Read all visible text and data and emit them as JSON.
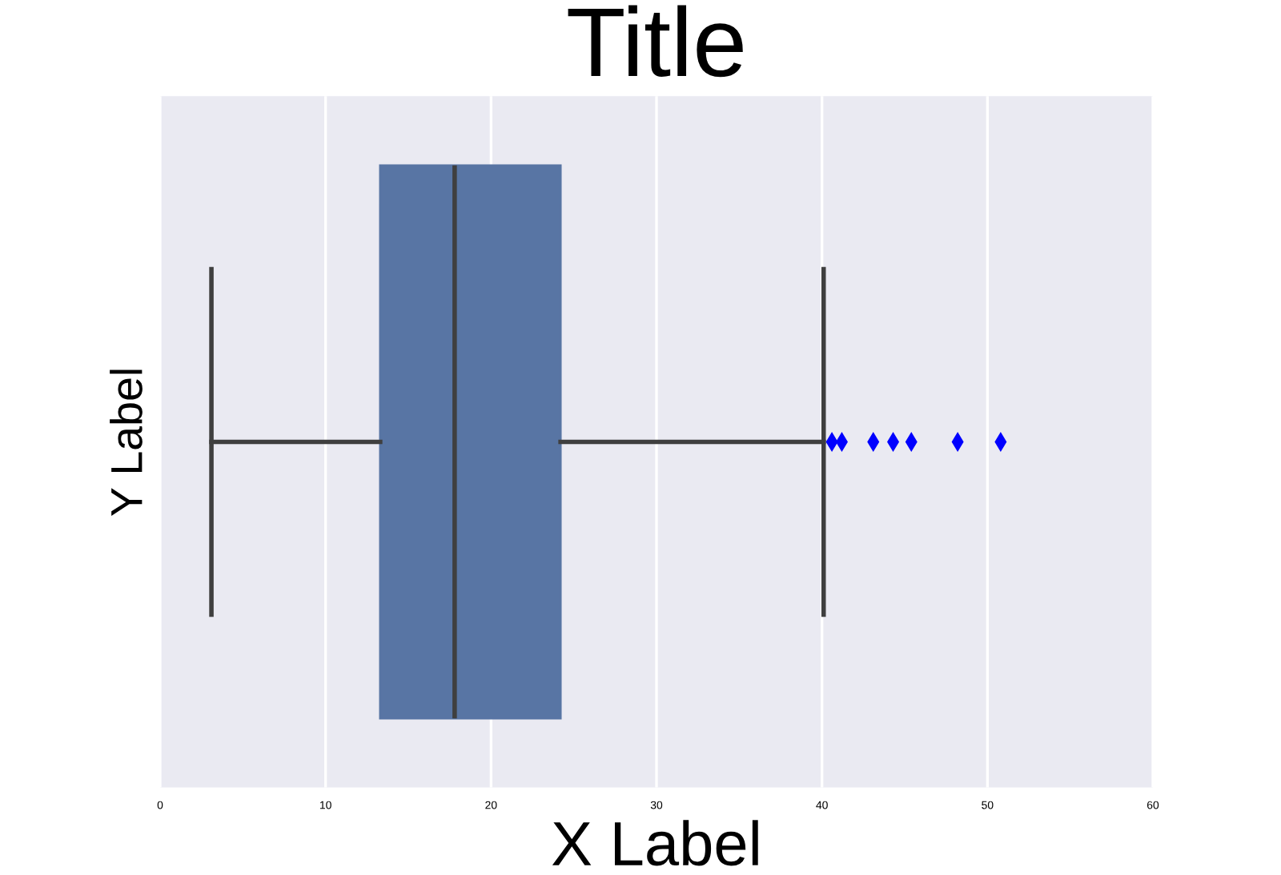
{
  "chart_data": {
    "type": "box",
    "title": "Title",
    "xlabel": "X Label",
    "ylabel": "Y Label",
    "orientation": "horizontal",
    "categories": [
      null
    ],
    "colors": [
      "#5875a4"
    ],
    "marker": "diamond",
    "boxes": [
      {
        "low": 3.1,
        "q1": 13.3,
        "median": 17.8,
        "q3": 24.2,
        "high": 40.1,
        "outliers": [
          40.6,
          41.2,
          43.1,
          44.3,
          45.4,
          48.2,
          50.8
        ]
      }
    ],
    "xlim": [
      0,
      60
    ],
    "xticks": [
      0,
      10,
      20,
      30,
      40,
      50,
      60
    ],
    "grid": "x",
    "tick_labels": "x"
  }
}
